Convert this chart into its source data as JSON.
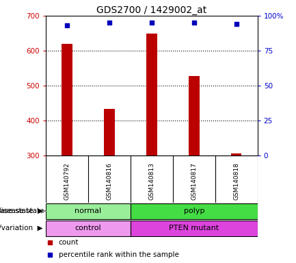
{
  "title": "GDS2700 / 1429002_at",
  "samples": [
    "GSM140792",
    "GSM140816",
    "GSM140813",
    "GSM140817",
    "GSM140818"
  ],
  "counts": [
    620,
    432,
    648,
    528,
    305
  ],
  "percentile_ranks": [
    93,
    95,
    95,
    95,
    94
  ],
  "y_min": 300,
  "y_max": 700,
  "y_ticks": [
    300,
    400,
    500,
    600,
    700
  ],
  "y2_ticks": [
    0,
    25,
    50,
    75,
    100
  ],
  "y2_tick_labels": [
    "0",
    "25",
    "50",
    "75",
    "100%"
  ],
  "bar_color": "#bb0000",
  "dot_color": "#0000bb",
  "disease_state": [
    {
      "label": "normal",
      "samples": [
        0,
        1
      ],
      "color": "#99ee99"
    },
    {
      "label": "polyp",
      "samples": [
        2,
        3,
        4
      ],
      "color": "#44dd44"
    }
  ],
  "genotype": [
    {
      "label": "control",
      "samples": [
        0,
        1
      ],
      "color": "#ee99ee"
    },
    {
      "label": "PTEN mutant",
      "samples": [
        2,
        3,
        4
      ],
      "color": "#dd44dd"
    }
  ],
  "background_color": "#ffffff",
  "plot_bg_color": "#ffffff",
  "xtick_bg_color": "#cccccc",
  "border_color": "#000000",
  "grid_color": "#000000",
  "left_tick_color": "#cc0000",
  "right_tick_color": "#0000cc",
  "n_samples": 5
}
